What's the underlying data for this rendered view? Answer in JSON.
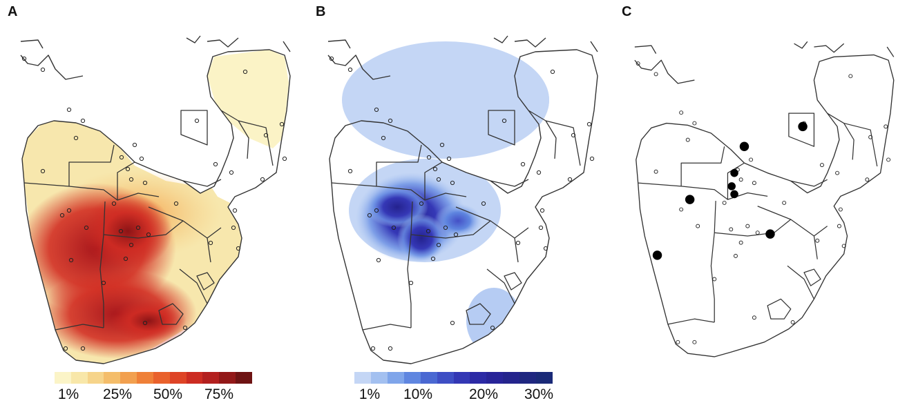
{
  "panels": [
    {
      "label": "A"
    },
    {
      "label": "B"
    },
    {
      "label": "C"
    }
  ],
  "legend_a": {
    "ticks": [
      "1%",
      "25%",
      "50%",
      "75%"
    ],
    "colors": [
      "#fbf4c7",
      "#f8e7a9",
      "#f6d48a",
      "#f4bd6a",
      "#f2a04f",
      "#ef8038",
      "#e9612c",
      "#de4426",
      "#cc2c22",
      "#b3201f",
      "#921818",
      "#6e1313"
    ]
  },
  "legend_b": {
    "ticks": [
      "1%",
      "10%",
      "20%",
      "30%"
    ],
    "colors": [
      "#c4d6f5",
      "#a3c0f0",
      "#7fa5ea",
      "#5f86e0",
      "#4a68d2",
      "#3e4ec4",
      "#3337b4",
      "#2c2aa5",
      "#282498",
      "#24248c",
      "#1f2780",
      "#1a2a78"
    ]
  }
}
